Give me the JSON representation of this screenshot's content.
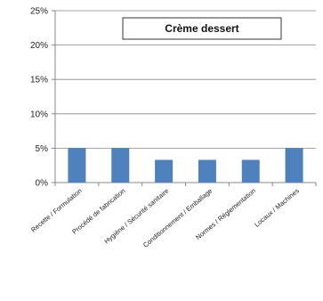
{
  "chart_data": {
    "type": "bar",
    "title": "Crème dessert",
    "categories": [
      "Recette / Formulation",
      "Procédé de fabrication",
      "Hygiène / Sécurité sanitaire",
      "Conditionnement / Emballage",
      "Normes / Réglementation",
      "Locaux / Machines"
    ],
    "values": [
      5,
      5,
      3.3,
      3.3,
      3.3,
      5
    ],
    "ylim": [
      0,
      25
    ],
    "yticks": [
      "0%",
      "5%",
      "10%",
      "15%",
      "20%",
      "25%"
    ],
    "ytick_values": [
      0,
      5,
      10,
      15,
      20,
      25
    ],
    "grid": true,
    "legend": "none",
    "colors": {
      "bar": "#4f81bd",
      "grid": "#888888",
      "axis": "#888888"
    }
  }
}
